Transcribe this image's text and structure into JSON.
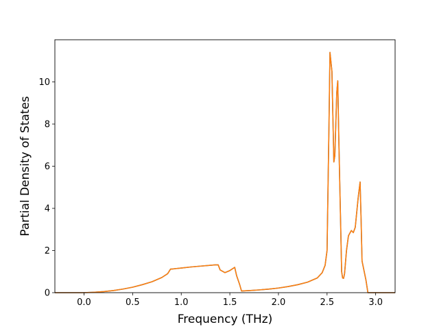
{
  "chart_data": {
    "type": "line",
    "title": "",
    "xlabel": "Frequency (THz)",
    "ylabel": "Partial Density of States",
    "xlim": [
      -0.3,
      3.2
    ],
    "ylim": [
      0,
      12.0
    ],
    "xticks": [
      0.0,
      0.5,
      1.0,
      1.5,
      2.0,
      2.5,
      3.0
    ],
    "xtick_labels": [
      "0.0",
      "0.5",
      "1.0",
      "1.5",
      "2.0",
      "2.5",
      "3.0"
    ],
    "yticks": [
      0,
      2,
      4,
      6,
      8,
      10
    ],
    "ytick_labels": [
      "0",
      "2",
      "4",
      "6",
      "8",
      "10"
    ],
    "grid": false,
    "legend": "none",
    "series": [
      {
        "color": "#1f77b4",
        "x": [
          -0.3,
          0.0,
          0.1,
          0.2,
          0.3,
          0.4,
          0.5,
          0.6,
          0.7,
          0.8,
          0.86,
          0.89,
          0.9,
          1.0,
          1.1,
          1.2,
          1.3,
          1.35,
          1.38,
          1.4,
          1.45,
          1.5,
          1.55,
          1.57,
          1.6,
          1.62,
          1.7,
          1.8,
          1.9,
          2.0,
          2.1,
          2.2,
          2.3,
          2.4,
          2.45,
          2.48,
          2.5,
          2.52,
          2.53,
          2.55,
          2.57,
          2.58,
          2.6,
          2.61,
          2.62,
          2.64,
          2.65,
          2.66,
          2.67,
          2.68,
          2.7,
          2.72,
          2.75,
          2.77,
          2.79,
          2.82,
          2.84,
          2.85,
          2.86,
          2.9,
          2.92,
          3.0,
          3.2
        ],
        "y": [
          0.0,
          0.0,
          0.02,
          0.05,
          0.1,
          0.17,
          0.26,
          0.38,
          0.52,
          0.72,
          0.9,
          1.12,
          1.12,
          1.17,
          1.22,
          1.26,
          1.3,
          1.32,
          1.32,
          1.08,
          0.95,
          1.05,
          1.2,
          0.8,
          0.4,
          0.08,
          0.1,
          0.13,
          0.17,
          0.22,
          0.29,
          0.38,
          0.5,
          0.7,
          0.95,
          1.3,
          2.0,
          8.0,
          11.4,
          10.5,
          6.2,
          6.5,
          9.5,
          10.05,
          7.5,
          3.2,
          1.0,
          0.7,
          0.68,
          0.9,
          2.0,
          2.7,
          2.95,
          2.85,
          3.1,
          4.5,
          5.25,
          3.5,
          1.5,
          0.6,
          0.0,
          0.0,
          0.0
        ]
      },
      {
        "color": "#ff7f0e",
        "x": [
          -0.3,
          0.0,
          0.1,
          0.2,
          0.3,
          0.4,
          0.5,
          0.6,
          0.7,
          0.8,
          0.86,
          0.89,
          0.9,
          1.0,
          1.1,
          1.2,
          1.3,
          1.35,
          1.38,
          1.4,
          1.45,
          1.5,
          1.55,
          1.57,
          1.6,
          1.62,
          1.7,
          1.8,
          1.9,
          2.0,
          2.1,
          2.2,
          2.3,
          2.4,
          2.45,
          2.48,
          2.5,
          2.52,
          2.53,
          2.55,
          2.57,
          2.58,
          2.6,
          2.61,
          2.62,
          2.64,
          2.65,
          2.66,
          2.67,
          2.68,
          2.7,
          2.72,
          2.75,
          2.77,
          2.79,
          2.82,
          2.84,
          2.85,
          2.86,
          2.9,
          2.92,
          3.0,
          3.2
        ],
        "y": [
          0.0,
          0.0,
          0.02,
          0.05,
          0.1,
          0.17,
          0.26,
          0.38,
          0.52,
          0.72,
          0.9,
          1.12,
          1.12,
          1.17,
          1.22,
          1.26,
          1.3,
          1.32,
          1.32,
          1.08,
          0.95,
          1.05,
          1.2,
          0.8,
          0.4,
          0.08,
          0.1,
          0.13,
          0.17,
          0.22,
          0.29,
          0.38,
          0.5,
          0.7,
          0.95,
          1.3,
          2.0,
          8.0,
          11.4,
          10.5,
          6.2,
          6.5,
          9.5,
          10.05,
          7.5,
          3.2,
          1.0,
          0.7,
          0.68,
          0.9,
          2.0,
          2.7,
          2.95,
          2.85,
          3.1,
          4.5,
          5.25,
          3.5,
          1.5,
          0.6,
          0.0,
          0.0,
          0.0
        ]
      }
    ]
  }
}
